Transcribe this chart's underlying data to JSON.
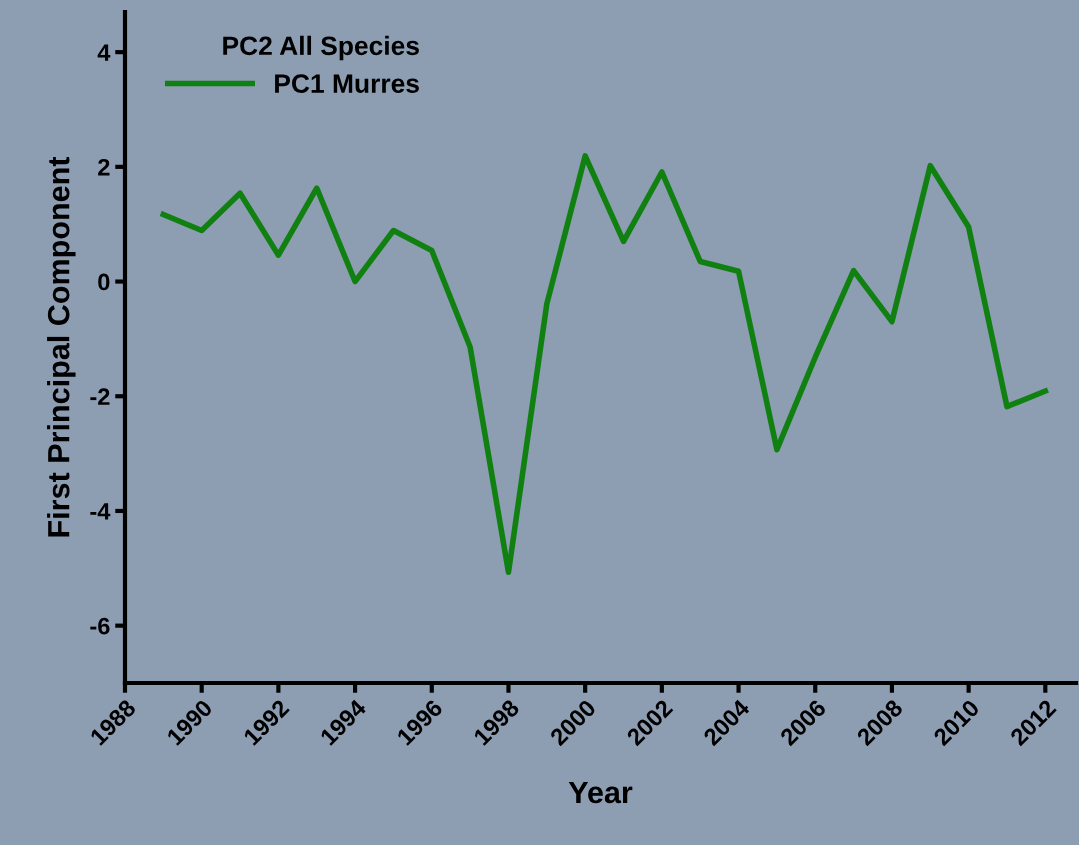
{
  "chart_data": {
    "type": "line",
    "xlabel": "Year",
    "ylabel": "First Principal Component",
    "legend_title": "PC2 All Species",
    "x": [
      1989,
      1990,
      1991,
      1992,
      1993,
      1994,
      1995,
      1996,
      1997,
      1998,
      1999,
      2000,
      2001,
      2002,
      2003,
      2004,
      2005,
      2006,
      2007,
      2008,
      2009,
      2010,
      2011,
      2012
    ],
    "series": [
      {
        "name": "PC1 Murres",
        "color": "#108010",
        "values": [
          1.17,
          0.89,
          1.54,
          0.46,
          1.63,
          0,
          0.89,
          0.54,
          -1.14,
          -5.07,
          -0.39,
          2.19,
          0.7,
          1.91,
          0.35,
          0.18,
          -2.93,
          -1.32,
          0.19,
          -0.7,
          2.02,
          0.95,
          -2.18,
          -1.91
        ]
      }
    ],
    "xlim": [
      1988,
      2012.8
    ],
    "xticks": [
      1988,
      1990,
      1992,
      1994,
      1996,
      1998,
      2000,
      2002,
      2004,
      2006,
      2008,
      2010,
      2012
    ],
    "ylim": [
      -7,
      4.7
    ],
    "yticks": [
      -6,
      -4,
      -2,
      0,
      2,
      4
    ],
    "legend": "top left",
    "grid": false,
    "marker": "none",
    "line_style": "solid"
  }
}
